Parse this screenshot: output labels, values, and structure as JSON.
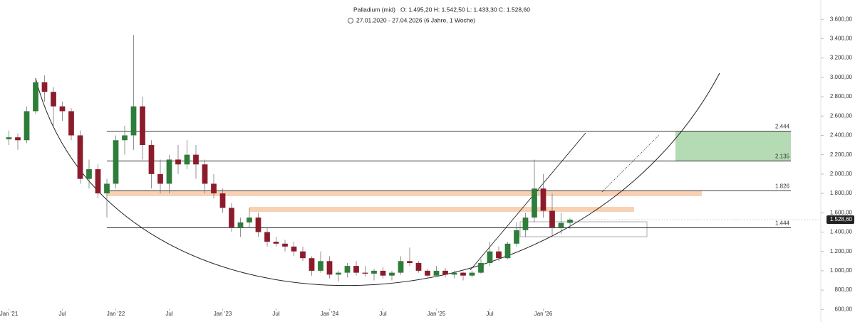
{
  "chart_data": {
    "type": "candlestick",
    "title": "Palladium (mid)",
    "ohlc_label": "O: 1.495,20  H: 1.542,50  L: 1.433,30  C: 1.528,60",
    "subtitle": "27.01.2020 - 27.04.2026  (6 Jahre, 1 Woche)",
    "up_color": "#2e7d3a",
    "down_color": "#8c1c2c",
    "x": [
      "2021-01",
      "2021-02",
      "2021-03",
      "2021-04",
      "2021-05",
      "2021-06",
      "2021-07",
      "2021-08",
      "2021-09",
      "2021-10",
      "2021-11",
      "2021-12",
      "2022-01",
      "2022-02",
      "2022-03",
      "2022-04",
      "2022-05",
      "2022-06",
      "2022-07",
      "2022-08",
      "2022-09",
      "2022-10",
      "2022-11",
      "2022-12",
      "2023-01",
      "2023-02",
      "2023-03",
      "2023-04",
      "2023-05",
      "2023-06",
      "2023-07",
      "2023-08",
      "2023-09",
      "2023-10",
      "2023-11",
      "2023-12",
      "2024-01",
      "2024-02",
      "2024-03",
      "2024-04",
      "2024-05",
      "2024-06",
      "2024-07",
      "2024-08",
      "2024-09",
      "2024-10",
      "2024-11",
      "2024-12",
      "2025-01",
      "2025-02",
      "2025-03",
      "2025-04",
      "2025-05",
      "2025-06",
      "2025-07",
      "2025-08",
      "2025-09",
      "2025-10",
      "2025-11",
      "2025-12",
      "2026-01",
      "2026-02",
      "2026-03",
      "2026-04"
    ],
    "open": [
      2360,
      2380,
      2350,
      2650,
      2950,
      2850,
      2700,
      2650,
      2400,
      1950,
      2050,
      1800,
      1900,
      2350,
      2400,
      2700,
      2300,
      2000,
      1900,
      2150,
      2100,
      2200,
      2100,
      1900,
      1800,
      1650,
      1450,
      1500,
      1550,
      1400,
      1300,
      1280,
      1250,
      1200,
      1130,
      1000,
      1100,
      960,
      980,
      1050,
      980,
      970,
      1000,
      950,
      980,
      1100,
      1080,
      1000,
      950,
      1000,
      960,
      980,
      950,
      980,
      1080,
      1200,
      1130,
      1280,
      1420,
      1550,
      1850,
      1620,
      1450,
      1495.2
    ],
    "high": [
      2450,
      2420,
      2700,
      2980,
      3020,
      2900,
      2750,
      2680,
      2450,
      2150,
      2100,
      1950,
      2400,
      2500,
      3440,
      2800,
      2350,
      2150,
      2200,
      2300,
      2350,
      2300,
      2150,
      2000,
      1850,
      1700,
      1550,
      1650,
      1600,
      1450,
      1350,
      1320,
      1300,
      1250,
      1150,
      1200,
      1150,
      1000,
      1080,
      1100,
      1050,
      1020,
      1040,
      1000,
      1150,
      1240,
      1100,
      1020,
      1050,
      1030,
      1000,
      990,
      1000,
      1120,
      1300,
      1250,
      1300,
      1500,
      1600,
      2150,
      2000,
      1800,
      1600,
      1542.5
    ],
    "low": [
      2300,
      2250,
      2320,
      2620,
      2750,
      2500,
      2550,
      2350,
      1900,
      1850,
      1750,
      1550,
      1850,
      2200,
      2250,
      2150,
      1850,
      1800,
      1800,
      2000,
      2050,
      1950,
      1800,
      1750,
      1600,
      1400,
      1350,
      1450,
      1350,
      1250,
      1250,
      1200,
      1150,
      1100,
      950,
      980,
      920,
      890,
      930,
      950,
      940,
      900,
      920,
      900,
      960,
      1050,
      980,
      930,
      940,
      930,
      920,
      900,
      930,
      970,
      1050,
      1100,
      1120,
      1250,
      1350,
      1500,
      1550,
      1350,
      1380,
      1433.3
    ],
    "close": [
      2380,
      2350,
      2650,
      2950,
      2850,
      2700,
      2650,
      2400,
      1950,
      2050,
      1800,
      1900,
      2350,
      2400,
      2700,
      2300,
      2000,
      1900,
      2150,
      2100,
      2200,
      2100,
      1900,
      1800,
      1650,
      1450,
      1500,
      1550,
      1400,
      1300,
      1280,
      1250,
      1200,
      1130,
      1000,
      1100,
      960,
      980,
      1050,
      980,
      970,
      1000,
      950,
      980,
      1100,
      1080,
      1000,
      950,
      1000,
      960,
      980,
      950,
      980,
      1080,
      1200,
      1130,
      1280,
      1420,
      1550,
      1850,
      1620,
      1450,
      1495,
      1528.6
    ],
    "last_price": {
      "value": 1528.6,
      "label": "1.528,60"
    },
    "levels": [
      {
        "value": 2444,
        "label": "2.444"
      },
      {
        "value": 2135,
        "label": "2.135"
      },
      {
        "value": 1826,
        "label": "1.826"
      },
      {
        "value": 1444,
        "label": "1.444"
      }
    ],
    "xlim": [
      "2020-12",
      "2028-08"
    ],
    "xticks": [
      {
        "value": "2021-01",
        "label": "Jan '21"
      },
      {
        "value": "2021-07",
        "label": "Jul"
      },
      {
        "value": "2022-01",
        "label": "Jan '22"
      },
      {
        "value": "2022-07",
        "label": "Jul"
      },
      {
        "value": "2023-01",
        "label": "Jan '23"
      },
      {
        "value": "2023-07",
        "label": "Jul"
      },
      {
        "value": "2024-01",
        "label": "Jan '24"
      },
      {
        "value": "2024-07",
        "label": "Jul"
      },
      {
        "value": "2025-01",
        "label": "Jan '25"
      },
      {
        "value": "2025-07",
        "label": "Jul"
      },
      {
        "value": "2026-01",
        "label": "Jan '26"
      }
    ],
    "ylim": [
      470,
      3800
    ],
    "yticks": [
      {
        "value": 600,
        "label": "600,00"
      },
      {
        "value": 800,
        "label": "800,00"
      },
      {
        "value": 1000,
        "label": "1.000,00"
      },
      {
        "value": 1200,
        "label": "1.200,00"
      },
      {
        "value": 1400,
        "label": "1.400,00"
      },
      {
        "value": 1600,
        "label": "1.600,00"
      },
      {
        "value": 1800,
        "label": "1.800,00"
      },
      {
        "value": 2000,
        "label": "2.000,00"
      },
      {
        "value": 2200,
        "label": "2.200,00"
      },
      {
        "value": 2400,
        "label": "2.400,00"
      },
      {
        "value": 2600,
        "label": "2.600,00"
      },
      {
        "value": 2800,
        "label": "2.800,00"
      },
      {
        "value": 3000,
        "label": "3.000,00"
      },
      {
        "value": 3200,
        "label": "3.200,00"
      },
      {
        "value": 3400,
        "label": "3.400,00"
      },
      {
        "value": 3600,
        "label": "3.600,00"
      }
    ]
  }
}
